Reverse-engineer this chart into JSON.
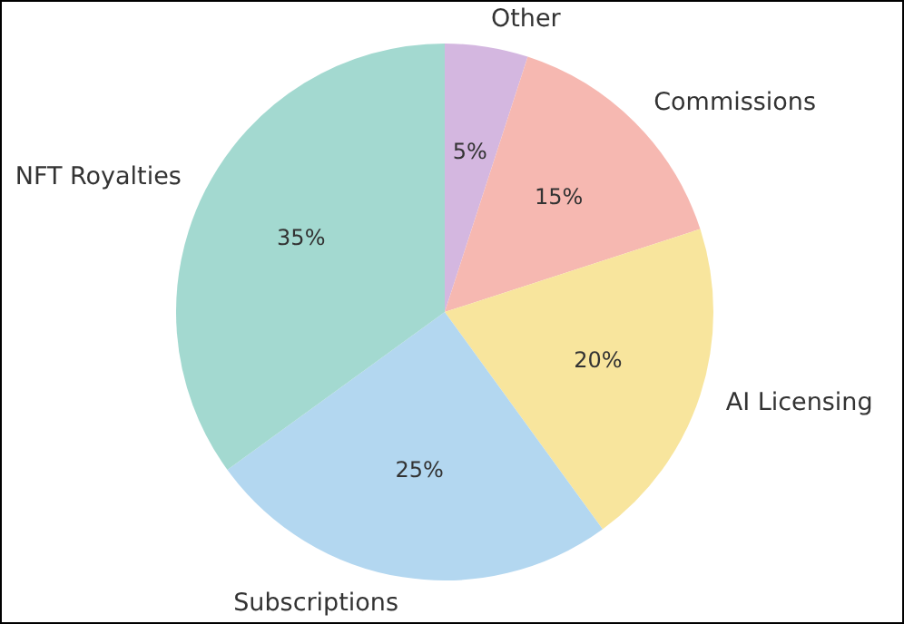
{
  "chart_data": {
    "type": "pie",
    "categories": [
      "Other",
      "Commissions",
      "AI Licensing",
      "Subscriptions",
      "NFT Royalties"
    ],
    "values": [
      5,
      15,
      20,
      25,
      35
    ],
    "value_labels": [
      "5%",
      "15%",
      "20%",
      "25%",
      "35%"
    ],
    "colors": [
      "#d4b7e0",
      "#f6b8b1",
      "#f8e59d",
      "#b3d7f0",
      "#a3d9d0"
    ],
    "legend": false
  }
}
